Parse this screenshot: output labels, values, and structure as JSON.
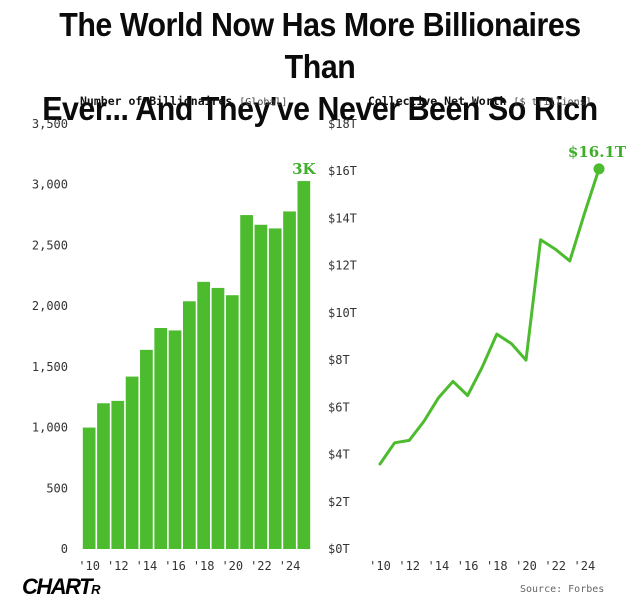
{
  "title_line1": "The World Now Has More Billionaires Than",
  "title_line2": "Ever... And They've Never Been So Rich",
  "logo_main": "CHART",
  "logo_tail": "R",
  "source": "Source: Forbes",
  "accent_color": "#4cbb2e",
  "chart_data": [
    {
      "type": "bar",
      "title": "Number of Billionaires",
      "subtitle": "[Global]",
      "categories": [
        "'10",
        "'11",
        "'12",
        "'13",
        "'14",
        "'15",
        "'16",
        "'17",
        "'18",
        "'19",
        "'20",
        "'21",
        "'22",
        "'23",
        "'24",
        "'25"
      ],
      "values": [
        1000,
        1200,
        1220,
        1420,
        1640,
        1820,
        1800,
        2040,
        2200,
        2150,
        2090,
        2750,
        2670,
        2640,
        2780,
        3030
      ],
      "ylim": [
        0,
        3500
      ],
      "yticks": [
        0,
        500,
        1000,
        1500,
        2000,
        2500,
        3000,
        3500
      ],
      "ytick_labels": [
        "0",
        "500",
        "1,000",
        "1,500",
        "2,000",
        "2,500",
        "3,000",
        "3,500"
      ],
      "xtick_labels": [
        "'10",
        "'12",
        "'14",
        "'16",
        "'18",
        "'20",
        "'22",
        "'24"
      ],
      "annotation": "3K",
      "grid": false
    },
    {
      "type": "line",
      "title": "Collective Net Worth",
      "subtitle": "[$ trillions]",
      "x": [
        2010,
        2011,
        2012,
        2013,
        2014,
        2015,
        2016,
        2017,
        2018,
        2019,
        2020,
        2021,
        2022,
        2023,
        2024,
        2025
      ],
      "values": [
        3.6,
        4.5,
        4.6,
        5.4,
        6.4,
        7.1,
        6.5,
        7.7,
        9.1,
        8.7,
        8.0,
        13.1,
        12.7,
        12.2,
        14.2,
        16.1
      ],
      "ylim": [
        0,
        18
      ],
      "yticks": [
        0,
        2,
        4,
        6,
        8,
        10,
        12,
        14,
        16,
        18
      ],
      "ytick_labels": [
        "$0T",
        "$2T",
        "$4T",
        "$6T",
        "$8T",
        "$10T",
        "$12T",
        "$14T",
        "$16T",
        "$18T"
      ],
      "xtick_labels": [
        "'10",
        "'12",
        "'14",
        "'16",
        "'18",
        "'20",
        "'22",
        "'24"
      ],
      "annotation": "$16.1T",
      "grid": false
    }
  ]
}
